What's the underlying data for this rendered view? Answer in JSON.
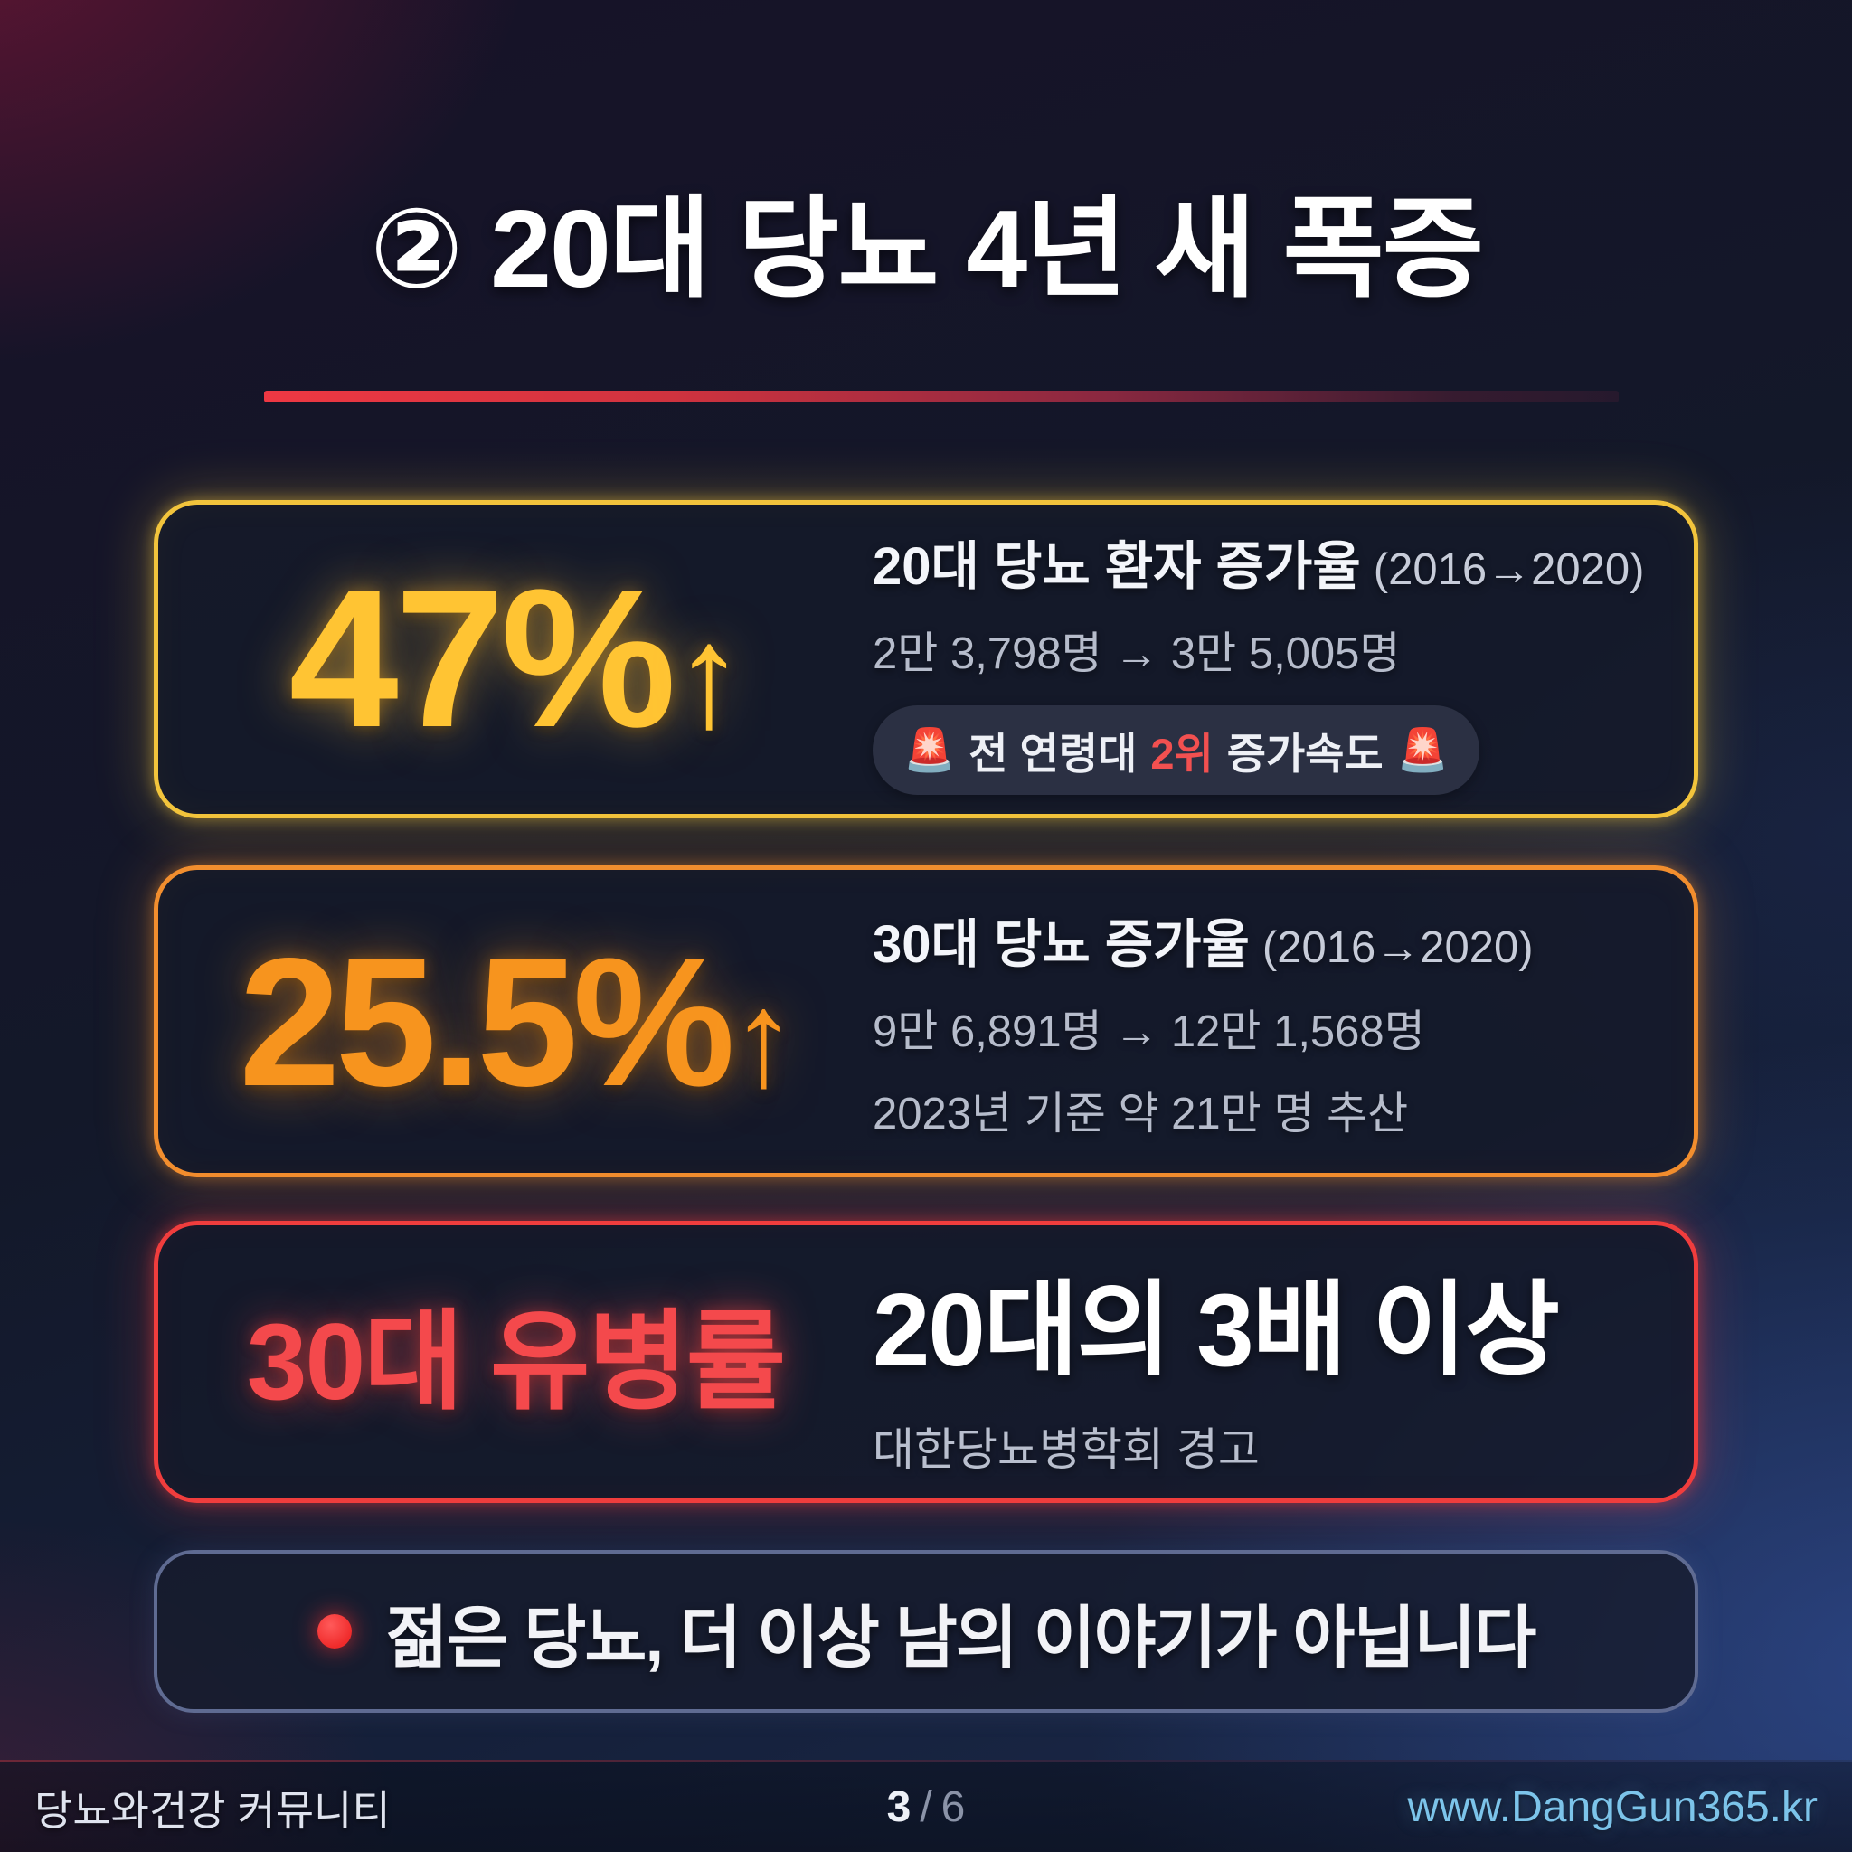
{
  "page": {
    "title": "② 20대 당뇨 4년 새 폭증"
  },
  "cards": [
    {
      "stat": "47%",
      "arrow": "↑",
      "heading": "20대 당뇨 환자 증가율",
      "heading_note": "(2016→2020)",
      "change": "2만 3,798명 → 3만 5,005명",
      "badge": {
        "siren": "🚨",
        "pre": "전 연령대",
        "highlight": "2위",
        "post": "증가속도"
      }
    },
    {
      "stat": "25.5%",
      "arrow": "↑",
      "heading": "30대 당뇨 증가율",
      "heading_note": "(2016→2020)",
      "change": "9만 6,891명 → 12만 1,568명",
      "estimate": "2023년 기준 약 21만 명 추산"
    },
    {
      "stat": "30대 유병률",
      "heading": "20대의 3배 이상",
      "source": "대한당뇨병학회 경고"
    },
    {
      "message": "젊은 당뇨, 더 이상 남의 이야기가 아닙니다"
    }
  ],
  "footer": {
    "community": "당뇨와건강 커뮤니티",
    "page_current": "3",
    "page_divider": "/",
    "page_total": "6",
    "url": "www.DangGun365.kr"
  },
  "colors": {
    "background_navy": "#131829",
    "background_maroon_glow": "#96183a",
    "background_blue_glow": "#3a5cb4",
    "title_underline_red": "#ee3843",
    "card1_border_gold": "#f2c43c",
    "card2_border_orange": "#f28e2e",
    "card3_border_red": "#f03d3d",
    "card4_border_slate": "#5f6b92",
    "stat_47_yellow": "#ffc433",
    "stat_255_orange": "#f7941e",
    "stat_30s_red": "#f4494c",
    "badge_highlight_red": "#f25050",
    "text_white": "#f3f5fa",
    "text_gray": "#b6bccb",
    "footer_url_blue": "#7cc4ea"
  },
  "icons": {
    "siren": "siren-emoji",
    "bullet": "red-dot",
    "up_arrow": "↑"
  }
}
